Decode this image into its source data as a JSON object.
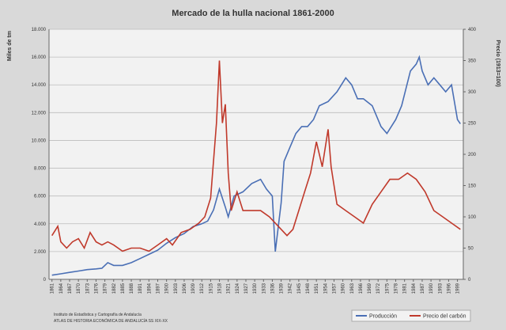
{
  "chart_data": {
    "type": "line",
    "title": "Mercado de la hulla nacional 1861-2000",
    "y_label": "Miles de tm",
    "y2_label": "Precio (1913=100)",
    "source": [
      "Instituto de Estadística y Cartografía de Andalucía",
      "ATLAS DE HISTORIA ECONÓMICA DE ANDALUCÍA SS XIX-XX"
    ],
    "xlim": [
      1860,
      2001
    ],
    "xticks": [
      1861,
      1864,
      1867,
      1870,
      1873,
      1876,
      1879,
      1882,
      1885,
      1888,
      1891,
      1894,
      1897,
      1900,
      1903,
      1906,
      1909,
      1912,
      1915,
      1918,
      1921,
      1924,
      1927,
      1930,
      1933,
      1936,
      1939,
      1942,
      1945,
      1948,
      1951,
      1954,
      1957,
      1960,
      1963,
      1966,
      1969,
      1972,
      1975,
      1978,
      1981,
      1984,
      1987,
      1990,
      1993,
      1996,
      1999
    ],
    "ylim": [
      0,
      18000
    ],
    "yticks": [
      0,
      {
        "value": 2000,
        "label": "2.000"
      },
      {
        "value": 4000,
        "label": "4.000"
      },
      {
        "value": 6000,
        "label": "6.000"
      },
      {
        "value": 8000,
        "label": "8.000"
      },
      {
        "value": 10000,
        "label": "10.000"
      },
      {
        "value": 12000,
        "label": "12.000"
      },
      {
        "value": 14000,
        "label": "14.000"
      },
      {
        "value": 16000,
        "label": "16.000"
      },
      {
        "value": 18000,
        "label": "18.000"
      }
    ],
    "y2lim": [
      0,
      400
    ],
    "y2ticks": [
      0,
      50,
      100,
      150,
      200,
      250,
      300,
      350,
      400
    ],
    "grid": true,
    "legend": "bottom-right",
    "series": [
      {
        "name": "Producción",
        "color": "#4a6fb5",
        "x": [
          1861,
          1864,
          1867,
          1870,
          1873,
          1876,
          1878,
          1880,
          1882,
          1885,
          1888,
          1891,
          1894,
          1897,
          1900,
          1903,
          1906,
          1909,
          1912,
          1914,
          1916,
          1918,
          1920,
          1921,
          1923,
          1926,
          1929,
          1932,
          1934,
          1936,
          1937,
          1939,
          1940,
          1942,
          1944,
          1946,
          1948,
          1950,
          1952,
          1955,
          1958,
          1961,
          1963,
          1965,
          1967,
          1970,
          1973,
          1975,
          1978,
          1980,
          1983,
          1985,
          1986,
          1987,
          1989,
          1991,
          1993,
          1995,
          1997,
          1999,
          2000
        ],
        "values": [
          300,
          400,
          500,
          600,
          700,
          750,
          800,
          1200,
          1000,
          1000,
          1200,
          1500,
          1800,
          2100,
          2600,
          3000,
          3300,
          3800,
          4000,
          4200,
          5000,
          6500,
          5200,
          4500,
          6000,
          6300,
          6900,
          7200,
          6500,
          6000,
          2000,
          5500,
          8500,
          9500,
          10500,
          11000,
          11000,
          11500,
          12500,
          12800,
          13500,
          14500,
          14000,
          13000,
          13000,
          12500,
          11000,
          10500,
          11500,
          12500,
          15000,
          15500,
          16000,
          15000,
          14000,
          14500,
          14000,
          13500,
          14000,
          11500,
          11200
        ]
      },
      {
        "name": "Precio del carbón",
        "color": "#c0392b",
        "axis": "y2",
        "x": [
          1861,
          1863,
          1864,
          1866,
          1868,
          1870,
          1872,
          1874,
          1876,
          1878,
          1880,
          1882,
          1885,
          1888,
          1891,
          1894,
          1897,
          1900,
          1902,
          1905,
          1908,
          1911,
          1913,
          1915,
          1917,
          1918,
          1919,
          1920,
          1921,
          1922,
          1924,
          1926,
          1929,
          1932,
          1935,
          1937,
          1939,
          1941,
          1943,
          1945,
          1947,
          1949,
          1951,
          1953,
          1955,
          1956,
          1958,
          1961,
          1964,
          1967,
          1970,
          1973,
          1976,
          1979,
          1982,
          1985,
          1988,
          1991,
          1994,
          1997,
          2000
        ],
        "values": [
          70,
          85,
          60,
          50,
          60,
          65,
          50,
          75,
          60,
          55,
          60,
          55,
          45,
          50,
          50,
          45,
          55,
          65,
          55,
          75,
          80,
          90,
          100,
          130,
          250,
          350,
          250,
          280,
          170,
          110,
          140,
          110,
          110,
          110,
          100,
          90,
          80,
          70,
          80,
          110,
          140,
          170,
          220,
          180,
          240,
          180,
          120,
          110,
          100,
          90,
          120,
          140,
          160,
          160,
          170,
          160,
          140,
          110,
          100,
          90,
          80
        ]
      }
    ]
  }
}
